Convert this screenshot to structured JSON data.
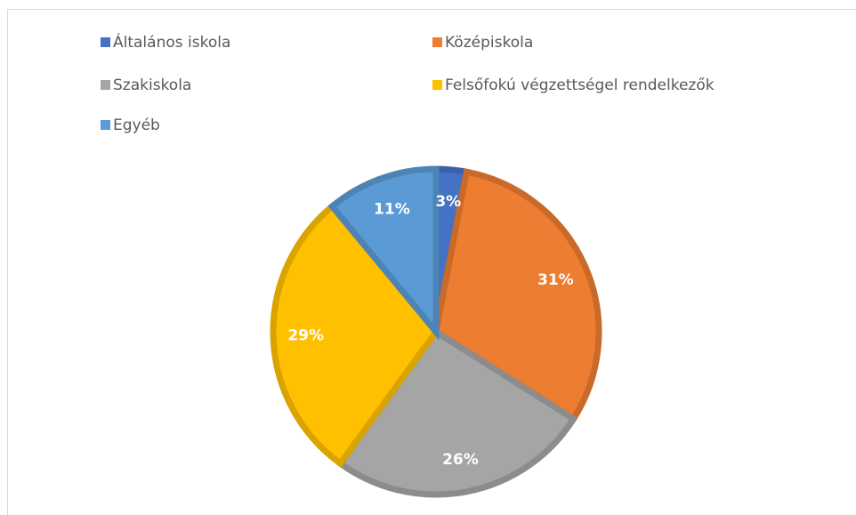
{
  "chart_data": {
    "type": "pie",
    "categories": [
      "Általános iskola",
      "Középiskola",
      "Szakiskola",
      "Felsőfokú végzettségel rendelkezők",
      "Egyéb"
    ],
    "values": [
      3,
      31,
      26,
      29,
      11
    ],
    "value_labels": [
      "3%",
      "31%",
      "26%",
      "29%",
      "11%"
    ],
    "colors": [
      "#4472c4",
      "#ed7d31",
      "#a5a5a5",
      "#ffc000",
      "#5b9bd5"
    ],
    "legend": "top"
  }
}
